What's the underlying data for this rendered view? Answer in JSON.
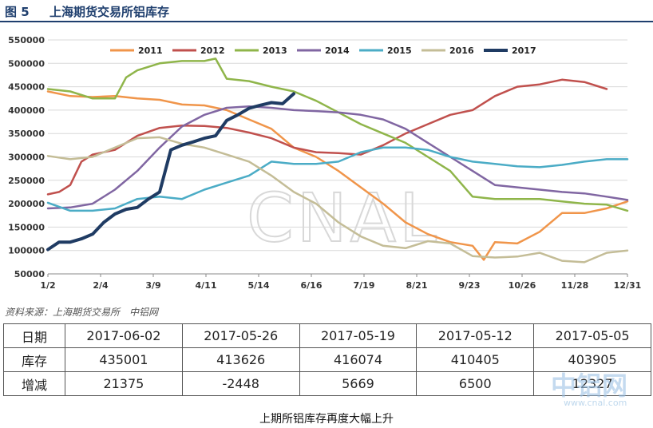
{
  "header": {
    "figure_no": "图 5",
    "title": "上海期货交易所铝库存"
  },
  "source": "资料来源：上海期货交易所　中铝网",
  "table": {
    "rows": [
      {
        "label": "日期",
        "values": [
          "2017-06-02",
          "2017-05-26",
          "2017-05-19",
          "2017-05-12",
          "2017-05-05"
        ]
      },
      {
        "label": "库存",
        "values": [
          "435001",
          "413626",
          "416074",
          "410405",
          "403905"
        ]
      },
      {
        "label": "增减",
        "values": [
          "21375",
          "-2448",
          "5669",
          "6500",
          "12327"
        ]
      }
    ]
  },
  "caption": "上期所铝库存再度大幅上升",
  "watermark": {
    "logo": "中铝网",
    "url": "www.cnal.com",
    "center_text": "CNAL"
  },
  "chart_data": {
    "type": "line",
    "x_ticks": [
      "1/2",
      "2/4",
      "3/9",
      "4/11",
      "5/14",
      "6/16",
      "7/19",
      "8/21",
      "9/23",
      "10/26",
      "11/28",
      "12/31"
    ],
    "x_range_days": [
      0,
      363
    ],
    "ylim": [
      50000,
      550000
    ],
    "y_ticks": [
      "50000",
      "100000",
      "150000",
      "200000",
      "250000",
      "300000",
      "350000",
      "400000",
      "450000",
      "500000",
      "550000"
    ],
    "legend_position": "top",
    "grid": "horizontal",
    "series": [
      {
        "name": "2011",
        "color": "#f0954a",
        "x": [
          0,
          14,
          28,
          42,
          56,
          70,
          84,
          98,
          112,
          126,
          140,
          154,
          168,
          182,
          196,
          210,
          224,
          238,
          252,
          266,
          273,
          280,
          294,
          308,
          322,
          336,
          350,
          363
        ],
        "values": [
          440000,
          430000,
          428000,
          430000,
          425000,
          422000,
          412000,
          410000,
          400000,
          380000,
          360000,
          320000,
          300000,
          270000,
          235000,
          200000,
          160000,
          135000,
          118000,
          110000,
          80000,
          118000,
          115000,
          140000,
          180000,
          180000,
          190000,
          205000
        ]
      },
      {
        "name": "2012",
        "color": "#c0504d",
        "x": [
          0,
          7,
          14,
          21,
          28,
          42,
          56,
          70,
          84,
          98,
          112,
          126,
          140,
          154,
          168,
          182,
          196,
          210,
          224,
          238,
          252,
          266,
          280,
          294,
          308,
          322,
          336,
          350
        ],
        "values": [
          220000,
          225000,
          240000,
          290000,
          305000,
          315000,
          345000,
          362000,
          367000,
          366000,
          362000,
          352000,
          340000,
          320000,
          310000,
          308000,
          305000,
          325000,
          350000,
          370000,
          390000,
          400000,
          430000,
          450000,
          455000,
          465000,
          460000,
          445000
        ]
      },
      {
        "name": "2013",
        "color": "#8fb54a",
        "x": [
          0,
          14,
          28,
          42,
          49,
          56,
          70,
          84,
          98,
          105,
          112,
          126,
          140,
          154,
          168,
          182,
          196,
          210,
          224,
          238,
          252,
          266,
          280,
          294,
          308,
          322,
          336,
          350,
          363
        ],
        "values": [
          445000,
          440000,
          425000,
          425000,
          470000,
          485000,
          500000,
          505000,
          505000,
          510000,
          467000,
          462000,
          450000,
          440000,
          420000,
          395000,
          370000,
          350000,
          330000,
          300000,
          270000,
          215000,
          210000,
          210000,
          210000,
          205000,
          200000,
          198000,
          185000
        ]
      },
      {
        "name": "2014",
        "color": "#8066a2",
        "x": [
          0,
          14,
          28,
          42,
          56,
          70,
          84,
          98,
          112,
          126,
          140,
          154,
          168,
          182,
          196,
          210,
          224,
          238,
          252,
          266,
          280,
          294,
          308,
          322,
          336,
          350,
          363
        ],
        "values": [
          190000,
          192000,
          200000,
          230000,
          270000,
          320000,
          365000,
          390000,
          405000,
          408000,
          405000,
          400000,
          398000,
          395000,
          390000,
          380000,
          360000,
          330000,
          300000,
          270000,
          240000,
          235000,
          230000,
          225000,
          222000,
          215000,
          208000
        ]
      },
      {
        "name": "2015",
        "color": "#4bacc6",
        "x": [
          0,
          14,
          28,
          42,
          56,
          70,
          84,
          98,
          112,
          126,
          140,
          154,
          168,
          182,
          196,
          210,
          224,
          238,
          252,
          266,
          280,
          294,
          308,
          322,
          336,
          350,
          363
        ],
        "values": [
          202000,
          185000,
          185000,
          190000,
          210000,
          215000,
          210000,
          230000,
          245000,
          260000,
          290000,
          285000,
          285000,
          290000,
          310000,
          320000,
          320000,
          315000,
          300000,
          290000,
          285000,
          280000,
          278000,
          283000,
          290000,
          295000,
          295000
        ]
      },
      {
        "name": "2016",
        "color": "#c4bd97",
        "x": [
          0,
          14,
          28,
          42,
          56,
          70,
          84,
          98,
          112,
          126,
          140,
          154,
          168,
          182,
          196,
          210,
          224,
          238,
          252,
          266,
          280,
          294,
          308,
          322,
          336,
          350,
          363
        ],
        "values": [
          302000,
          295000,
          300000,
          320000,
          340000,
          342000,
          328000,
          320000,
          305000,
          290000,
          260000,
          225000,
          200000,
          160000,
          130000,
          110000,
          105000,
          120000,
          115000,
          88000,
          85000,
          87000,
          95000,
          78000,
          75000,
          95000,
          100000
        ]
      },
      {
        "name": "2017",
        "color": "#1f3b63",
        "x": [
          0,
          7,
          14,
          21,
          28,
          35,
          42,
          49,
          56,
          63,
          70,
          77,
          84,
          91,
          98,
          105,
          112,
          119,
          126,
          133,
          140,
          147,
          154
        ],
        "values": [
          102000,
          118000,
          118000,
          125000,
          135000,
          160000,
          178000,
          188000,
          192000,
          210000,
          225000,
          315000,
          325000,
          332000,
          340000,
          345000,
          378000,
          390000,
          403905,
          410405,
          416074,
          413626,
          435001
        ]
      }
    ]
  }
}
